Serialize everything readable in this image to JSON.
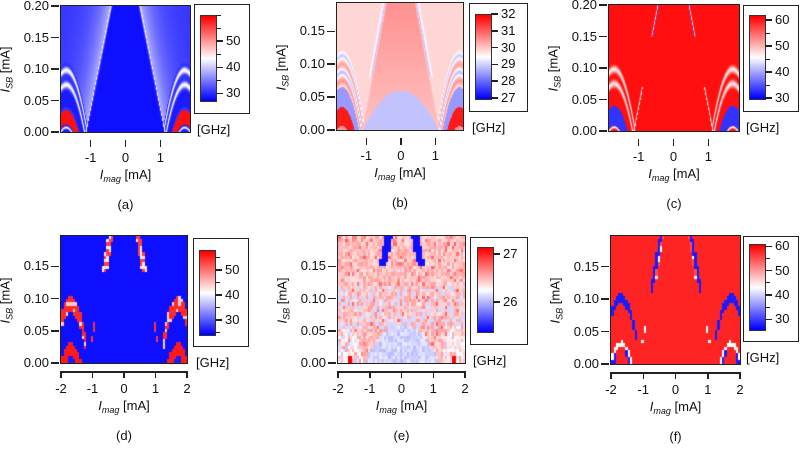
{
  "chart_data": [
    {
      "type": "heatmap",
      "panel_label": "(a)",
      "xlabel": {
        "symbol": "I",
        "subscript": "mag",
        "unit": "[mA]"
      },
      "ylabel": {
        "symbol": "I",
        "subscript": "SB",
        "unit": "[mA]"
      },
      "xlim": [
        -1.85,
        1.85
      ],
      "ylim": [
        0,
        0.2
      ],
      "xticks": [
        "-1",
        "0",
        "1"
      ],
      "yticks": [
        "0.00",
        "0.05",
        "0.10",
        "0.15",
        "0.20"
      ],
      "colorbar": {
        "label": "[GHz]",
        "range": [
          27.5,
          60
        ],
        "ticks": [
          "30",
          "40",
          "50"
        ],
        "minor_step": 5,
        "colormap": "blue-white-red"
      }
    },
    {
      "type": "heatmap",
      "panel_label": "(b)",
      "xlabel": {
        "symbol": "I",
        "subscript": "mag",
        "unit": "[mA]"
      },
      "ylabel": {
        "symbol": "I",
        "subscript": "SB",
        "unit": "[mA]"
      },
      "xlim": [
        -1.85,
        1.8
      ],
      "ylim": [
        0,
        0.193
      ],
      "xticks": [
        "-1",
        "0",
        "1"
      ],
      "yticks": [
        "0.00",
        "0.05",
        "0.10",
        "0.15"
      ],
      "colorbar": {
        "label": "[GHz]",
        "range": [
          27,
          32
        ],
        "ticks": [
          "27",
          "28",
          "29",
          "30",
          "31",
          "32"
        ],
        "minor_step": 0,
        "colormap": "blue-white-red"
      }
    },
    {
      "type": "heatmap",
      "panel_label": "(c)",
      "xlabel": {
        "symbol": "I",
        "subscript": "mag",
        "unit": "[mA]"
      },
      "ylabel": {
        "symbol": "I",
        "subscript": "SB",
        "unit": "[mA]"
      },
      "xlim": [
        -1.85,
        1.88
      ],
      "ylim": [
        0,
        0.2
      ],
      "xticks": [
        "-1",
        "0",
        "1"
      ],
      "yticks": [
        "0.00",
        "0.05",
        "0.10",
        "0.15",
        "0.20"
      ],
      "colorbar": {
        "label": "[GHz]",
        "range": [
          30,
          62
        ],
        "ticks": [
          "30",
          "40",
          "50",
          "60"
        ],
        "minor_step": 5,
        "colormap": "blue-white-red"
      }
    },
    {
      "type": "heatmap",
      "panel_label": "(d)",
      "xlabel": {
        "symbol": "I",
        "subscript": "mag",
        "unit": "[mA]"
      },
      "ylabel": {
        "symbol": "I",
        "subscript": "SB",
        "unit": "[mA]"
      },
      "xlim": [
        -2,
        2
      ],
      "ylim": [
        0,
        0.197
      ],
      "xticks": [
        "-2",
        "-1",
        "0",
        "1",
        "2"
      ],
      "yticks": [
        "0.00",
        "0.05",
        "0.10",
        "0.15"
      ],
      "colorbar": {
        "label": "[GHz]",
        "range": [
          24.5,
          58
        ],
        "ticks": [
          "30",
          "40",
          "50"
        ],
        "minor_step": 5,
        "colormap": "blue-white-red"
      }
    },
    {
      "type": "heatmap",
      "panel_label": "(e)",
      "xlabel": {
        "symbol": "I",
        "subscript": "mag",
        "unit": "[mA]"
      },
      "ylabel": {
        "symbol": "I",
        "subscript": "SB",
        "unit": "[mA]"
      },
      "xlim": [
        -2,
        2
      ],
      "ylim": [
        0,
        0.197
      ],
      "xticks": [
        "-2",
        "-1",
        "0",
        "1",
        "2"
      ],
      "yticks": [
        "0.00",
        "0.05",
        "0.10",
        "0.15"
      ],
      "colorbar": {
        "label": "[GHz]",
        "range": [
          25.4,
          27.15
        ],
        "ticks": [
          "26",
          "27"
        ],
        "minor_step": 0,
        "colormap": "blue-white-red"
      }
    },
    {
      "type": "heatmap",
      "panel_label": "(f)",
      "xlabel": {
        "symbol": "I",
        "subscript": "mag",
        "unit": "[mA]"
      },
      "ylabel": {
        "symbol": "I",
        "subscript": "SB",
        "unit": "[mA]"
      },
      "xlim": [
        -2,
        2
      ],
      "ylim": [
        0,
        0.197
      ],
      "xticks": [
        "-2",
        "-1",
        "0",
        "1",
        "2"
      ],
      "yticks": [
        "0.00",
        "0.05",
        "0.10",
        "0.15"
      ],
      "colorbar": {
        "label": "[GHz]",
        "range": [
          26,
          61
        ],
        "ticks": [
          "30",
          "40",
          "50",
          "60"
        ],
        "minor_step": 5,
        "colormap": "blue-white-red"
      }
    }
  ],
  "colors": {
    "low": "#0000ff",
    "mid": "#ffffff",
    "high": "#ff0000",
    "frame": "#222222"
  }
}
